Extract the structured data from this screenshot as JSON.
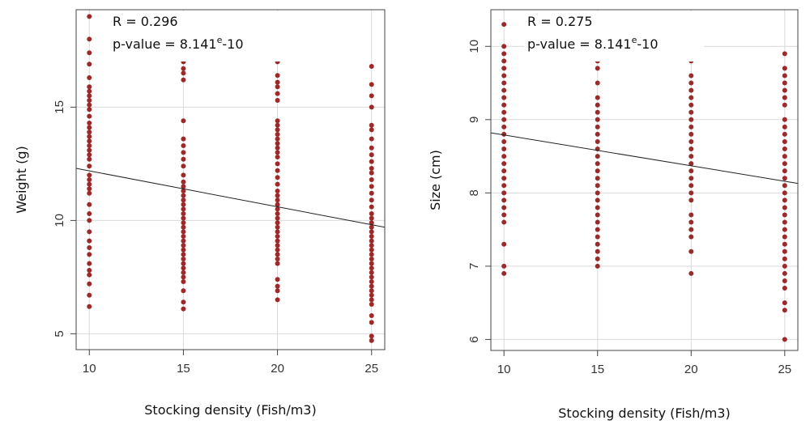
{
  "chart_data": [
    {
      "type": "scatter",
      "xlabel": "Stocking density (Fish/m3)",
      "ylabel": "Weight (g)",
      "xlim": [
        9.3,
        25.7
      ],
      "ylim": [
        4.3,
        19.3
      ],
      "xticks": [
        "10",
        "15",
        "20",
        "25"
      ],
      "yticks": [
        "5",
        "10",
        "15"
      ],
      "grid": true,
      "annotations": {
        "r": "R = 0.296",
        "p_prefix": "p-value = 8.141",
        "p_sup": "e",
        "p_suffix": "-10"
      },
      "fit_line": {
        "x": [
          9.3,
          25.7
        ],
        "y": [
          12.3,
          9.7
        ]
      },
      "color": "#9b2a2a",
      "points": [
        {
          "x": 10,
          "y": [
            19.0,
            18.0,
            17.4,
            16.9,
            16.3,
            15.9,
            15.7,
            15.5,
            15.3,
            15.1,
            14.9,
            14.6,
            14.3,
            14.1,
            13.9,
            13.7,
            13.5,
            13.3,
            13.1,
            12.9,
            12.7,
            12.4,
            12.0,
            11.8,
            11.6,
            11.4,
            11.2,
            10.7,
            10.3,
            10.0,
            9.5,
            9.1,
            8.8,
            8.5,
            8.1,
            7.8,
            7.6,
            7.2,
            6.7,
            6.2
          ]
        },
        {
          "x": 15,
          "y": [
            17.3,
            17.0,
            16.7,
            16.5,
            16.2,
            14.4,
            13.6,
            13.3,
            13.0,
            12.7,
            12.4,
            12.0,
            11.7,
            11.5,
            11.3,
            11.1,
            10.9,
            10.7,
            10.5,
            10.3,
            10.1,
            9.9,
            9.7,
            9.5,
            9.3,
            9.1,
            8.9,
            8.7,
            8.5,
            8.3,
            8.1,
            7.9,
            7.7,
            7.5,
            7.3,
            6.9,
            6.4,
            6.1
          ]
        },
        {
          "x": 20,
          "y": [
            17.0,
            16.4,
            16.1,
            15.9,
            15.6,
            15.3,
            14.4,
            14.2,
            14.0,
            13.8,
            13.6,
            13.4,
            13.2,
            13.0,
            12.8,
            12.5,
            12.2,
            11.9,
            11.6,
            11.3,
            11.1,
            10.9,
            10.7,
            10.5,
            10.3,
            10.1,
            9.9,
            9.7,
            9.5,
            9.3,
            9.1,
            8.9,
            8.7,
            8.5,
            8.3,
            8.1,
            7.4,
            7.1,
            6.9,
            6.5
          ]
        },
        {
          "x": 25,
          "y": [
            16.8,
            16.0,
            15.5,
            15.0,
            14.2,
            14.0,
            13.6,
            13.2,
            12.9,
            12.6,
            12.3,
            12.1,
            11.8,
            11.5,
            11.2,
            10.9,
            10.6,
            10.3,
            10.1,
            9.9,
            9.7,
            9.5,
            9.3,
            9.1,
            8.9,
            8.7,
            8.5,
            8.3,
            8.1,
            7.9,
            7.7,
            7.5,
            7.3,
            7.1,
            6.9,
            6.7,
            6.5,
            6.3,
            5.8,
            5.5,
            4.9,
            4.7
          ]
        }
      ]
    },
    {
      "type": "scatter",
      "xlabel": "Stocking density (Fish/m3)",
      "ylabel": "Size (cm)",
      "xlim": [
        9.3,
        25.7
      ],
      "ylim": [
        5.85,
        10.5
      ],
      "xticks": [
        "10",
        "15",
        "20",
        "25"
      ],
      "yticks": [
        "6",
        "7",
        "8",
        "9",
        "10"
      ],
      "grid": true,
      "annotations": {
        "r": "R = 0.275",
        "p_prefix": "p-value = 8.141",
        "p_sup": "e",
        "p_suffix": "-10"
      },
      "fit_line": {
        "x": [
          9.3,
          25.7
        ],
        "y": [
          8.82,
          8.13
        ]
      },
      "color": "#9b2a2a",
      "points": [
        {
          "x": 10,
          "y": [
            10.3,
            10.0,
            9.9,
            9.8,
            9.7,
            9.6,
            9.5,
            9.4,
            9.3,
            9.2,
            9.1,
            9.0,
            8.9,
            8.8,
            8.7,
            8.6,
            8.5,
            8.4,
            8.3,
            8.2,
            8.1,
            8.0,
            7.9,
            7.8,
            7.7,
            7.6,
            7.3,
            7.0,
            6.9
          ]
        },
        {
          "x": 15,
          "y": [
            9.9,
            9.8,
            9.7,
            9.5,
            9.3,
            9.2,
            9.1,
            9.0,
            8.9,
            8.8,
            8.7,
            8.6,
            8.5,
            8.4,
            8.3,
            8.2,
            8.1,
            8.0,
            7.9,
            7.8,
            7.7,
            7.6,
            7.5,
            7.4,
            7.3,
            7.2,
            7.1,
            7.0
          ]
        },
        {
          "x": 20,
          "y": [
            9.9,
            9.8,
            9.6,
            9.5,
            9.4,
            9.3,
            9.2,
            9.1,
            9.0,
            8.9,
            8.8,
            8.7,
            8.6,
            8.5,
            8.4,
            8.3,
            8.2,
            8.1,
            8.0,
            7.9,
            7.7,
            7.6,
            7.5,
            7.4,
            7.2,
            6.9
          ]
        },
        {
          "x": 25,
          "y": [
            9.9,
            9.7,
            9.6,
            9.5,
            9.4,
            9.3,
            9.2,
            9.0,
            8.9,
            8.8,
            8.7,
            8.6,
            8.5,
            8.4,
            8.3,
            8.2,
            8.1,
            8.0,
            7.9,
            7.8,
            7.7,
            7.6,
            7.5,
            7.4,
            7.3,
            7.2,
            7.1,
            7.0,
            6.9,
            6.8,
            6.7,
            6.5,
            6.4,
            6.0
          ]
        }
      ]
    }
  ]
}
